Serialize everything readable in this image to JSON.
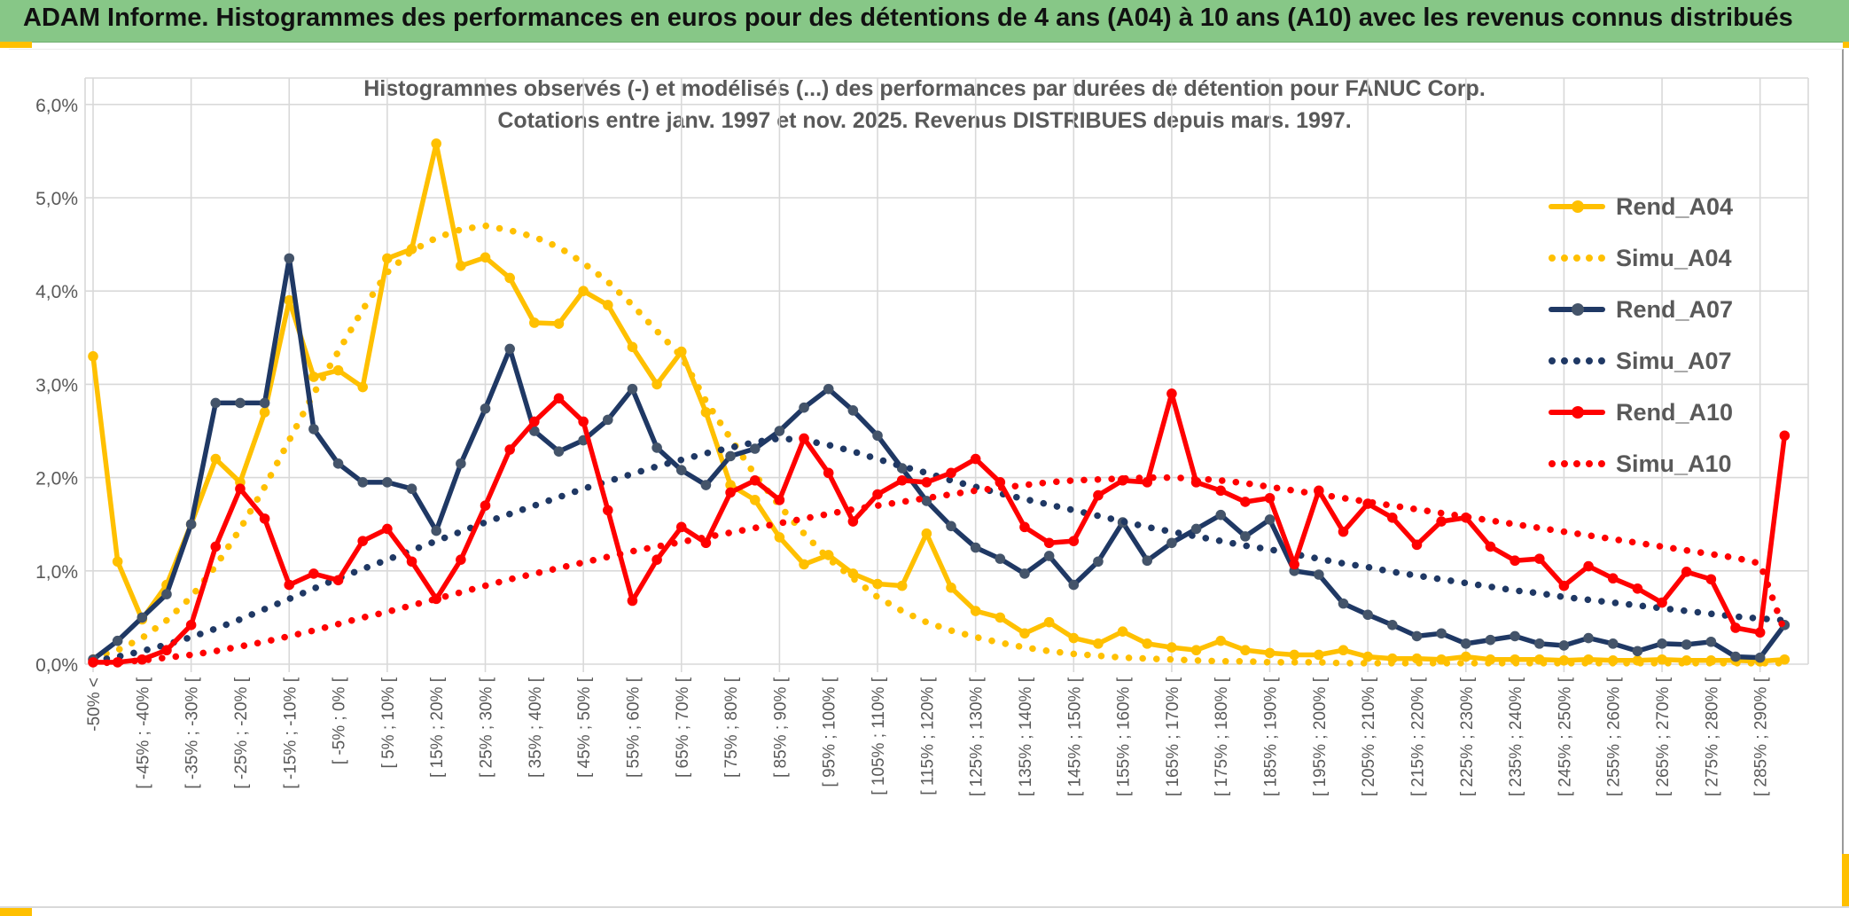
{
  "banner": {
    "title": "ADAM Informe. Histogrammes des performances en euros pour des détentions de 4 ans (A04) à 10 ans (A10) avec les revenus connus distribués"
  },
  "colors": {
    "banner_green": "#87C787",
    "accent_gold": "#FFC000",
    "grid": "#D9D9D9",
    "text_gray": "#595959",
    "series_gold": "#FFC000",
    "series_navy": "#1F3864",
    "series_navy_marker": "#44546A",
    "series_red": "#FF0000"
  },
  "chart_data": {
    "type": "line",
    "title_line1": "Histogrammes observés (-) et modélisés (...) des performances par durées de détention pour FANUC Corp.",
    "title_line2": "Cotations entre janv. 1997 et nov. 2025. Revenus DISTRIBUES depuis mars. 1997.",
    "ylabel": "",
    "xlabel": "",
    "ylim": [
      0,
      6
    ],
    "grid": true,
    "legend_position": "right",
    "y_ticks": [
      "0,0%",
      "1,0%",
      "2,0%",
      "3,0%",
      "4,0%",
      "5,0%",
      "6,0%"
    ],
    "x_bin_width_pct": 5,
    "x_label_every": 2,
    "bins": 70,
    "x_labels": [
      "-50% <",
      "[ -45% ; -40% [",
      "[ -35% ; -30% [",
      "[ -25% ; -20% [",
      "[ -15% ; -10% [",
      "[ -5% ; 0% [",
      "[ 5% ; 10% [",
      "[ 15% ; 20% [",
      "[ 25% ; 30% [",
      "[ 35% ; 40% [",
      "[ 45% ; 50% [",
      "[ 55% ; 60% [",
      "[ 65% ; 70% [",
      "[ 75% ; 80% [",
      "[ 85% ; 90% [",
      "[ 95% ; 100% [",
      "[ 105% ; 110% [",
      "[ 115% ; 120% [",
      "[ 125% ; 130% [",
      "[ 135% ; 140% [",
      "[ 145% ; 150% [",
      "[ 155% ; 160% [",
      "[ 165% ; 170% [",
      "[ 175% ; 180% [",
      "[ 185% ; 190% [",
      "[ 195% ; 200% [",
      "[ 205% ; 210% [",
      "[ 215% ; 220% [",
      "[ 225% ; 230% [",
      "[ 235% ; 240% [",
      "[ 245% ; 250% [",
      "[ 255% ; 260% [",
      "[ 265% ; 270% [",
      "[ 275% ; 280% [",
      "[ 285% ; 290% ["
    ],
    "series": [
      {
        "name": "Rend_A04",
        "style": "solid",
        "color": "#FFC000",
        "marker": "#FFC000",
        "values": [
          3.3,
          1.1,
          0.48,
          0.85,
          1.5,
          2.2,
          1.95,
          2.7,
          3.9,
          3.08,
          3.15,
          2.97,
          4.35,
          4.45,
          5.58,
          4.27,
          4.36,
          4.14,
          3.66,
          3.65,
          4.0,
          3.85,
          3.4,
          3.0,
          3.35,
          2.7,
          1.92,
          1.76,
          1.36,
          1.07,
          1.17,
          0.97,
          0.86,
          0.84,
          1.4,
          0.82,
          0.57,
          0.5,
          0.33,
          0.45,
          0.28,
          0.22,
          0.35,
          0.22,
          0.18,
          0.15,
          0.25,
          0.15,
          0.12,
          0.1,
          0.1,
          0.15,
          0.08,
          0.06,
          0.06,
          0.05,
          0.08,
          0.05,
          0.05,
          0.05,
          0.04,
          0.05,
          0.04,
          0.04,
          0.05,
          0.04,
          0.04,
          0.04,
          0.03,
          0.05
        ]
      },
      {
        "name": "Simu_A04",
        "style": "dotted",
        "color": "#FFC000",
        "values": [
          0.07,
          0.15,
          0.28,
          0.47,
          0.72,
          1.05,
          1.45,
          1.9,
          2.4,
          2.9,
          3.35,
          3.8,
          4.2,
          4.43,
          4.57,
          4.66,
          4.7,
          4.65,
          4.58,
          4.47,
          4.3,
          4.1,
          3.85,
          3.57,
          3.3,
          2.82,
          2.42,
          2.03,
          1.7,
          1.4,
          1.13,
          0.92,
          0.72,
          0.57,
          0.45,
          0.36,
          0.29,
          0.23,
          0.18,
          0.14,
          0.11,
          0.09,
          0.07,
          0.06,
          0.05,
          0.04,
          0.03,
          0.03,
          0.02,
          0.02,
          0.02,
          0.01,
          0.01,
          0.01,
          0.01,
          0.01,
          0.01,
          0.01,
          0.01,
          0.01,
          0.01,
          0.01,
          0.01,
          0.01,
          0.01,
          0.01,
          0.01,
          0.01,
          0.01,
          0.01
        ]
      },
      {
        "name": "Rend_A07",
        "style": "solid",
        "color": "#1F3864",
        "marker": "#44546A",
        "values": [
          0.05,
          0.25,
          0.5,
          0.75,
          1.5,
          2.8,
          2.8,
          2.8,
          4.35,
          2.52,
          2.15,
          1.95,
          1.95,
          1.88,
          1.43,
          2.15,
          2.74,
          3.38,
          2.5,
          2.28,
          2.4,
          2.62,
          2.95,
          2.32,
          2.08,
          1.92,
          2.23,
          2.31,
          2.5,
          2.75,
          2.95,
          2.72,
          2.45,
          2.1,
          1.75,
          1.48,
          1.25,
          1.13,
          0.97,
          1.16,
          0.85,
          1.1,
          1.52,
          1.11,
          1.3,
          1.45,
          1.6,
          1.37,
          1.55,
          1.0,
          0.96,
          0.65,
          0.53,
          0.42,
          0.3,
          0.33,
          0.22,
          0.26,
          0.3,
          0.22,
          0.2,
          0.28,
          0.22,
          0.14,
          0.22,
          0.21,
          0.24,
          0.08,
          0.07,
          0.42
        ]
      },
      {
        "name": "Simu_A07",
        "style": "dotted",
        "color": "#1F3864",
        "values": [
          0.03,
          0.08,
          0.14,
          0.21,
          0.29,
          0.38,
          0.48,
          0.59,
          0.7,
          0.81,
          0.92,
          1.02,
          1.12,
          1.22,
          1.32,
          1.42,
          1.52,
          1.61,
          1.7,
          1.79,
          1.88,
          1.96,
          2.04,
          2.12,
          2.19,
          2.26,
          2.32,
          2.38,
          2.42,
          2.4,
          2.35,
          2.28,
          2.2,
          2.12,
          2.05,
          1.97,
          1.9,
          1.83,
          1.77,
          1.71,
          1.65,
          1.59,
          1.53,
          1.47,
          1.42,
          1.37,
          1.32,
          1.27,
          1.23,
          1.18,
          1.13,
          1.08,
          1.04,
          0.99,
          0.95,
          0.91,
          0.87,
          0.83,
          0.79,
          0.76,
          0.72,
          0.69,
          0.66,
          0.63,
          0.6,
          0.57,
          0.54,
          0.51,
          0.49,
          0.47
        ]
      },
      {
        "name": "Rend_A10",
        "style": "solid",
        "color": "#FF0000",
        "marker": "#FF0000",
        "values": [
          0.02,
          0.02,
          0.05,
          0.15,
          0.42,
          1.26,
          1.88,
          1.56,
          0.85,
          0.97,
          0.9,
          1.32,
          1.45,
          1.1,
          0.7,
          1.12,
          1.7,
          2.3,
          2.6,
          2.85,
          2.6,
          1.65,
          0.68,
          1.12,
          1.47,
          1.3,
          1.84,
          1.97,
          1.76,
          2.42,
          2.05,
          1.53,
          1.82,
          1.97,
          1.95,
          2.05,
          2.2,
          1.95,
          1.47,
          1.3,
          1.32,
          1.81,
          1.97,
          1.95,
          2.9,
          1.95,
          1.86,
          1.74,
          1.78,
          1.07,
          1.86,
          1.42,
          1.72,
          1.57,
          1.28,
          1.53,
          1.57,
          1.26,
          1.11,
          1.13,
          0.84,
          1.05,
          0.92,
          0.81,
          0.66,
          0.99,
          0.91,
          0.39,
          0.34,
          2.45
        ]
      },
      {
        "name": "Simu_A10",
        "style": "dotted",
        "color": "#FF0000",
        "values": [
          0.01,
          0.02,
          0.04,
          0.07,
          0.1,
          0.14,
          0.19,
          0.24,
          0.3,
          0.36,
          0.43,
          0.5,
          0.56,
          0.63,
          0.7,
          0.77,
          0.84,
          0.91,
          0.97,
          1.03,
          1.09,
          1.15,
          1.21,
          1.26,
          1.31,
          1.36,
          1.41,
          1.46,
          1.51,
          1.56,
          1.61,
          1.66,
          1.7,
          1.74,
          1.78,
          1.82,
          1.86,
          1.89,
          1.92,
          1.95,
          1.97,
          1.98,
          1.99,
          2.0,
          2.0,
          1.99,
          1.97,
          1.94,
          1.9,
          1.86,
          1.82,
          1.78,
          1.74,
          1.7,
          1.66,
          1.62,
          1.58,
          1.54,
          1.5,
          1.46,
          1.42,
          1.38,
          1.34,
          1.3,
          1.26,
          1.22,
          1.18,
          1.14,
          1.08,
          0.35
        ]
      }
    ]
  }
}
